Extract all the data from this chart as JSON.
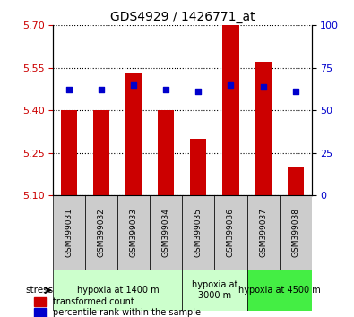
{
  "title": "GDS4929 / 1426771_at",
  "samples": [
    "GSM399031",
    "GSM399032",
    "GSM399033",
    "GSM399034",
    "GSM399035",
    "GSM399036",
    "GSM399037",
    "GSM399038"
  ],
  "transformed_count": [
    5.4,
    5.4,
    5.53,
    5.4,
    5.3,
    5.7,
    5.57,
    5.2
  ],
  "percentile_rank": [
    62,
    62,
    65,
    62,
    61,
    65,
    64,
    61
  ],
  "ylim_left": [
    5.1,
    5.7
  ],
  "ylim_right": [
    0,
    100
  ],
  "yticks_left": [
    5.1,
    5.25,
    5.4,
    5.55,
    5.7
  ],
  "yticks_right": [
    0,
    25,
    50,
    75,
    100
  ],
  "bar_color": "#cc0000",
  "dot_color": "#0000cc",
  "bar_bottom": 5.1,
  "groups": [
    {
      "label": "hypoxia at 1400 m",
      "samples": [
        0,
        1,
        2,
        3
      ],
      "color": "#ccffcc"
    },
    {
      "label": "hypoxia at\n3000 m",
      "samples": [
        4,
        5
      ],
      "color": "#ccffcc"
    },
    {
      "label": "hypoxia at 4500 m",
      "samples": [
        6,
        7
      ],
      "color": "#44dd44"
    }
  ],
  "legend_bar_label": "transformed count",
  "legend_dot_label": "percentile rank within the sample",
  "stress_label": "stress",
  "background_color": "#ffffff",
  "plot_bg_color": "#ffffff",
  "tick_label_color_left": "#cc0000",
  "tick_label_color_right": "#0000cc",
  "grid_color": "#000000",
  "sample_bg_color": "#cccccc"
}
